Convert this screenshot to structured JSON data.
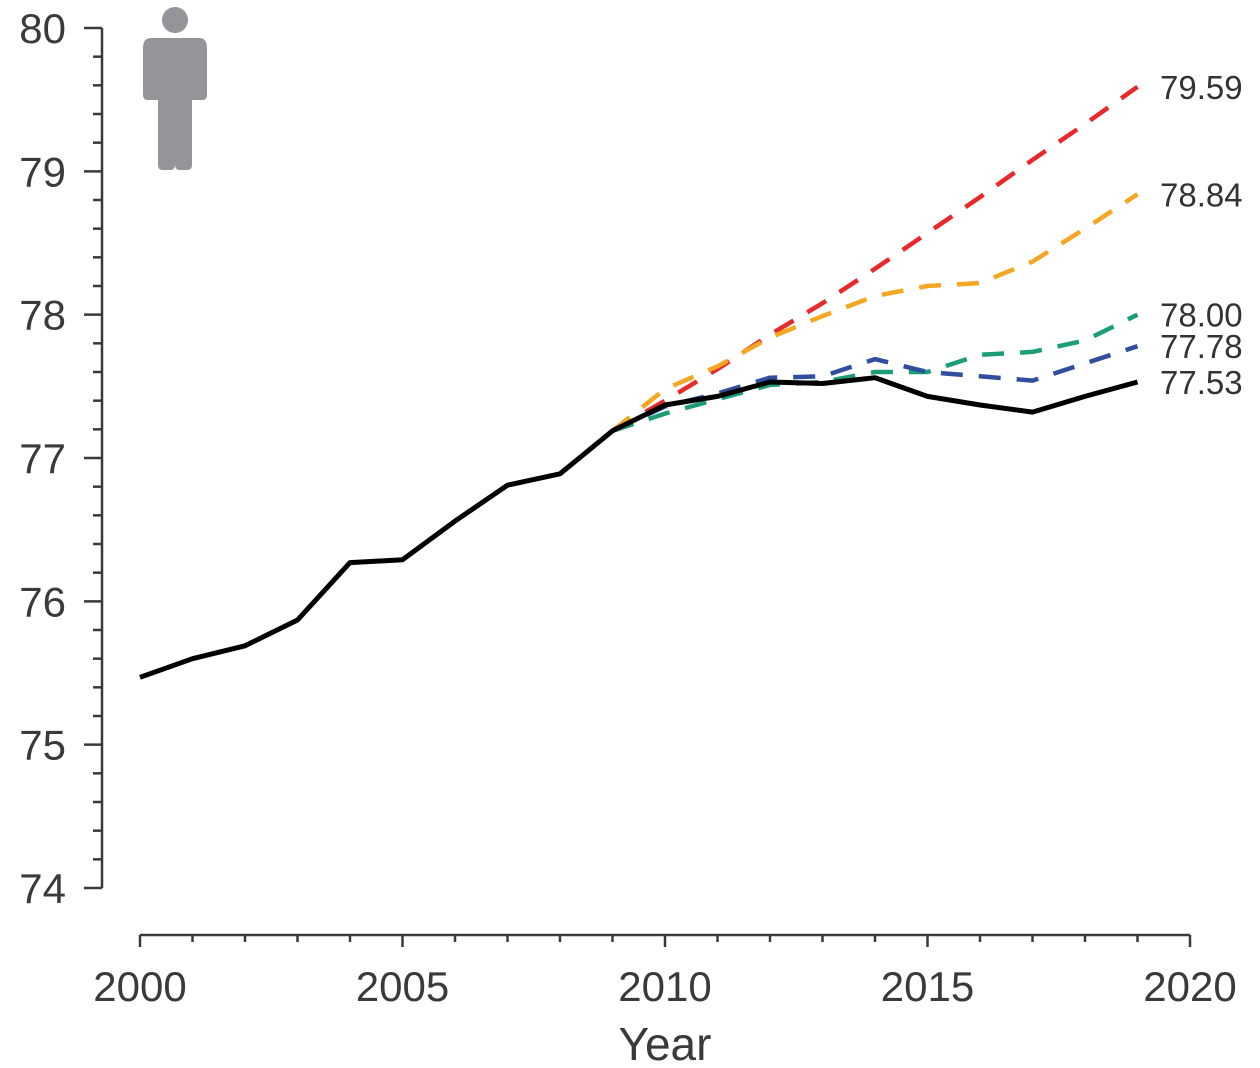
{
  "chart_data": {
    "type": "line",
    "xlabel": "Year",
    "ylabel": "",
    "xlim": [
      2000,
      2020
    ],
    "ylim": [
      74,
      80
    ],
    "x_ticks": [
      2000,
      2005,
      2010,
      2015,
      2020
    ],
    "y_ticks": [
      74,
      75,
      76,
      77,
      78,
      79,
      80
    ],
    "minor_x_step": 1,
    "minor_y_step": 0.2,
    "icon": "person-icon",
    "icon_color": "#939598",
    "series": [
      {
        "style": "solid",
        "color": "#000000",
        "x": [
          2000,
          2001,
          2002,
          2003,
          2004,
          2005,
          2006,
          2007,
          2008,
          2009,
          2010,
          2011,
          2012,
          2013,
          2014,
          2015,
          2016,
          2017,
          2018,
          2019
        ],
        "y": [
          75.47,
          75.6,
          75.69,
          75.87,
          76.27,
          76.29,
          76.56,
          76.81,
          76.89,
          77.19,
          77.37,
          77.43,
          77.53,
          77.52,
          77.56,
          77.43,
          77.37,
          77.32,
          77.43,
          77.53
        ],
        "end_label": "77.53"
      },
      {
        "style": "dashed",
        "color": "#e8282b",
        "x": [
          2009,
          2010,
          2011,
          2012,
          2013,
          2014,
          2015,
          2016,
          2017,
          2018,
          2019
        ],
        "y": [
          77.19,
          77.4,
          77.62,
          77.86,
          78.08,
          78.32,
          78.57,
          78.82,
          79.08,
          79.33,
          79.59
        ],
        "end_label": "79.59"
      },
      {
        "style": "dashed",
        "color": "#f5a623",
        "x": [
          2009,
          2010,
          2011,
          2012,
          2013,
          2014,
          2015,
          2016,
          2017,
          2018,
          2019
        ],
        "y": [
          77.19,
          77.48,
          77.64,
          77.84,
          77.99,
          78.13,
          78.2,
          78.22,
          78.37,
          78.6,
          78.84
        ],
        "end_label": "78.84"
      },
      {
        "style": "dashed",
        "color": "#1b9e77",
        "x": [
          2009,
          2010,
          2011,
          2012,
          2013,
          2014,
          2015,
          2016,
          2017,
          2018,
          2019
        ],
        "y": [
          77.19,
          77.31,
          77.41,
          77.51,
          77.53,
          77.6,
          77.6,
          77.72,
          77.74,
          77.82,
          78.0
        ],
        "end_label": "78.00"
      },
      {
        "style": "dashed",
        "color": "#2f4e9e",
        "x": [
          2009,
          2010,
          2011,
          2012,
          2013,
          2014,
          2015,
          2016,
          2017,
          2018,
          2019
        ],
        "y": [
          77.19,
          77.36,
          77.45,
          77.56,
          77.57,
          77.69,
          77.6,
          77.57,
          77.54,
          77.66,
          77.78
        ],
        "end_label": "77.78"
      }
    ]
  }
}
